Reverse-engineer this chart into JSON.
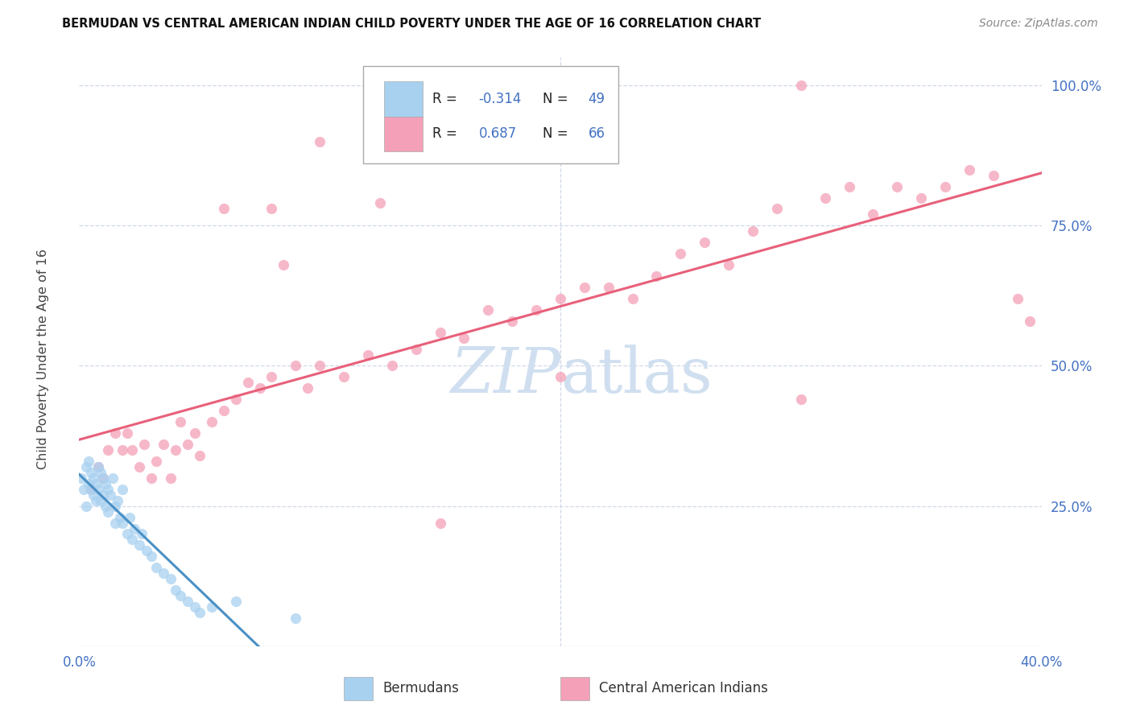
{
  "title": "BERMUDAN VS CENTRAL AMERICAN INDIAN CHILD POVERTY UNDER THE AGE OF 16 CORRELATION CHART",
  "source": "Source: ZipAtlas.com",
  "ylabel": "Child Poverty Under the Age of 16",
  "xlim": [
    0.0,
    0.4
  ],
  "ylim": [
    0.0,
    1.05
  ],
  "yticks": [
    0.25,
    0.5,
    0.75,
    1.0
  ],
  "ytick_labels": [
    "25.0%",
    "50.0%",
    "75.0%",
    "100.0%"
  ],
  "xticks": [
    0.0,
    0.1,
    0.2,
    0.3,
    0.4
  ],
  "xtick_labels": [
    "0.0%",
    "",
    "",
    "",
    "40.0%"
  ],
  "legend_r_bermudans": "-0.314",
  "legend_n_bermudans": "49",
  "legend_r_central": "0.687",
  "legend_n_central": "66",
  "bermudans_color": "#a8d1f0",
  "central_color": "#f4a0b8",
  "trendline_bermudans_color": "#4a90c4",
  "trendline_central_color": "#e8607a",
  "watermark_color": "#d0dff0",
  "background_color": "#ffffff",
  "tick_color": "#4472c4",
  "grid_color": "#d0d8e8",
  "bermudans_x": [
    0.001,
    0.002,
    0.003,
    0.003,
    0.004,
    0.004,
    0.005,
    0.005,
    0.006,
    0.006,
    0.007,
    0.007,
    0.008,
    0.008,
    0.009,
    0.009,
    0.01,
    0.01,
    0.011,
    0.011,
    0.012,
    0.012,
    0.013,
    0.014,
    0.015,
    0.015,
    0.016,
    0.017,
    0.018,
    0.018,
    0.02,
    0.021,
    0.022,
    0.023,
    0.025,
    0.026,
    0.028,
    0.03,
    0.032,
    0.035,
    0.038,
    0.04,
    0.042,
    0.045,
    0.048,
    0.05,
    0.055,
    0.065,
    0.09
  ],
  "bermudans_y": [
    0.3,
    0.28,
    0.32,
    0.25,
    0.29,
    0.33,
    0.28,
    0.31,
    0.27,
    0.3,
    0.26,
    0.29,
    0.32,
    0.28,
    0.31,
    0.26,
    0.3,
    0.27,
    0.29,
    0.25,
    0.28,
    0.24,
    0.27,
    0.3,
    0.25,
    0.22,
    0.26,
    0.23,
    0.22,
    0.28,
    0.2,
    0.23,
    0.19,
    0.21,
    0.18,
    0.2,
    0.17,
    0.16,
    0.14,
    0.13,
    0.12,
    0.1,
    0.09,
    0.08,
    0.07,
    0.06,
    0.07,
    0.08,
    0.05
  ],
  "central_x": [
    0.005,
    0.008,
    0.01,
    0.012,
    0.015,
    0.018,
    0.02,
    0.022,
    0.025,
    0.027,
    0.03,
    0.032,
    0.035,
    0.038,
    0.04,
    0.042,
    0.045,
    0.048,
    0.05,
    0.055,
    0.06,
    0.065,
    0.07,
    0.075,
    0.08,
    0.085,
    0.09,
    0.095,
    0.1,
    0.11,
    0.12,
    0.13,
    0.14,
    0.15,
    0.16,
    0.17,
    0.18,
    0.19,
    0.2,
    0.21,
    0.22,
    0.23,
    0.24,
    0.25,
    0.26,
    0.27,
    0.28,
    0.29,
    0.3,
    0.31,
    0.32,
    0.33,
    0.34,
    0.35,
    0.36,
    0.37,
    0.38,
    0.39,
    0.395,
    0.2,
    0.15,
    0.3,
    0.125,
    0.08,
    0.1,
    0.06
  ],
  "central_y": [
    0.28,
    0.32,
    0.3,
    0.35,
    0.38,
    0.35,
    0.38,
    0.35,
    0.32,
    0.36,
    0.3,
    0.33,
    0.36,
    0.3,
    0.35,
    0.4,
    0.36,
    0.38,
    0.34,
    0.4,
    0.42,
    0.44,
    0.47,
    0.46,
    0.48,
    0.68,
    0.5,
    0.46,
    0.5,
    0.48,
    0.52,
    0.5,
    0.53,
    0.56,
    0.55,
    0.6,
    0.58,
    0.6,
    0.62,
    0.64,
    0.64,
    0.62,
    0.66,
    0.7,
    0.72,
    0.68,
    0.74,
    0.78,
    1.0,
    0.8,
    0.82,
    0.77,
    0.82,
    0.8,
    0.82,
    0.85,
    0.84,
    0.62,
    0.58,
    0.48,
    0.22,
    0.44,
    0.79,
    0.78,
    0.9,
    0.78
  ],
  "trendline_berm_x0": 0.0,
  "trendline_berm_x1": 0.12,
  "trendline_central_x0": 0.0,
  "trendline_central_x1": 0.4
}
